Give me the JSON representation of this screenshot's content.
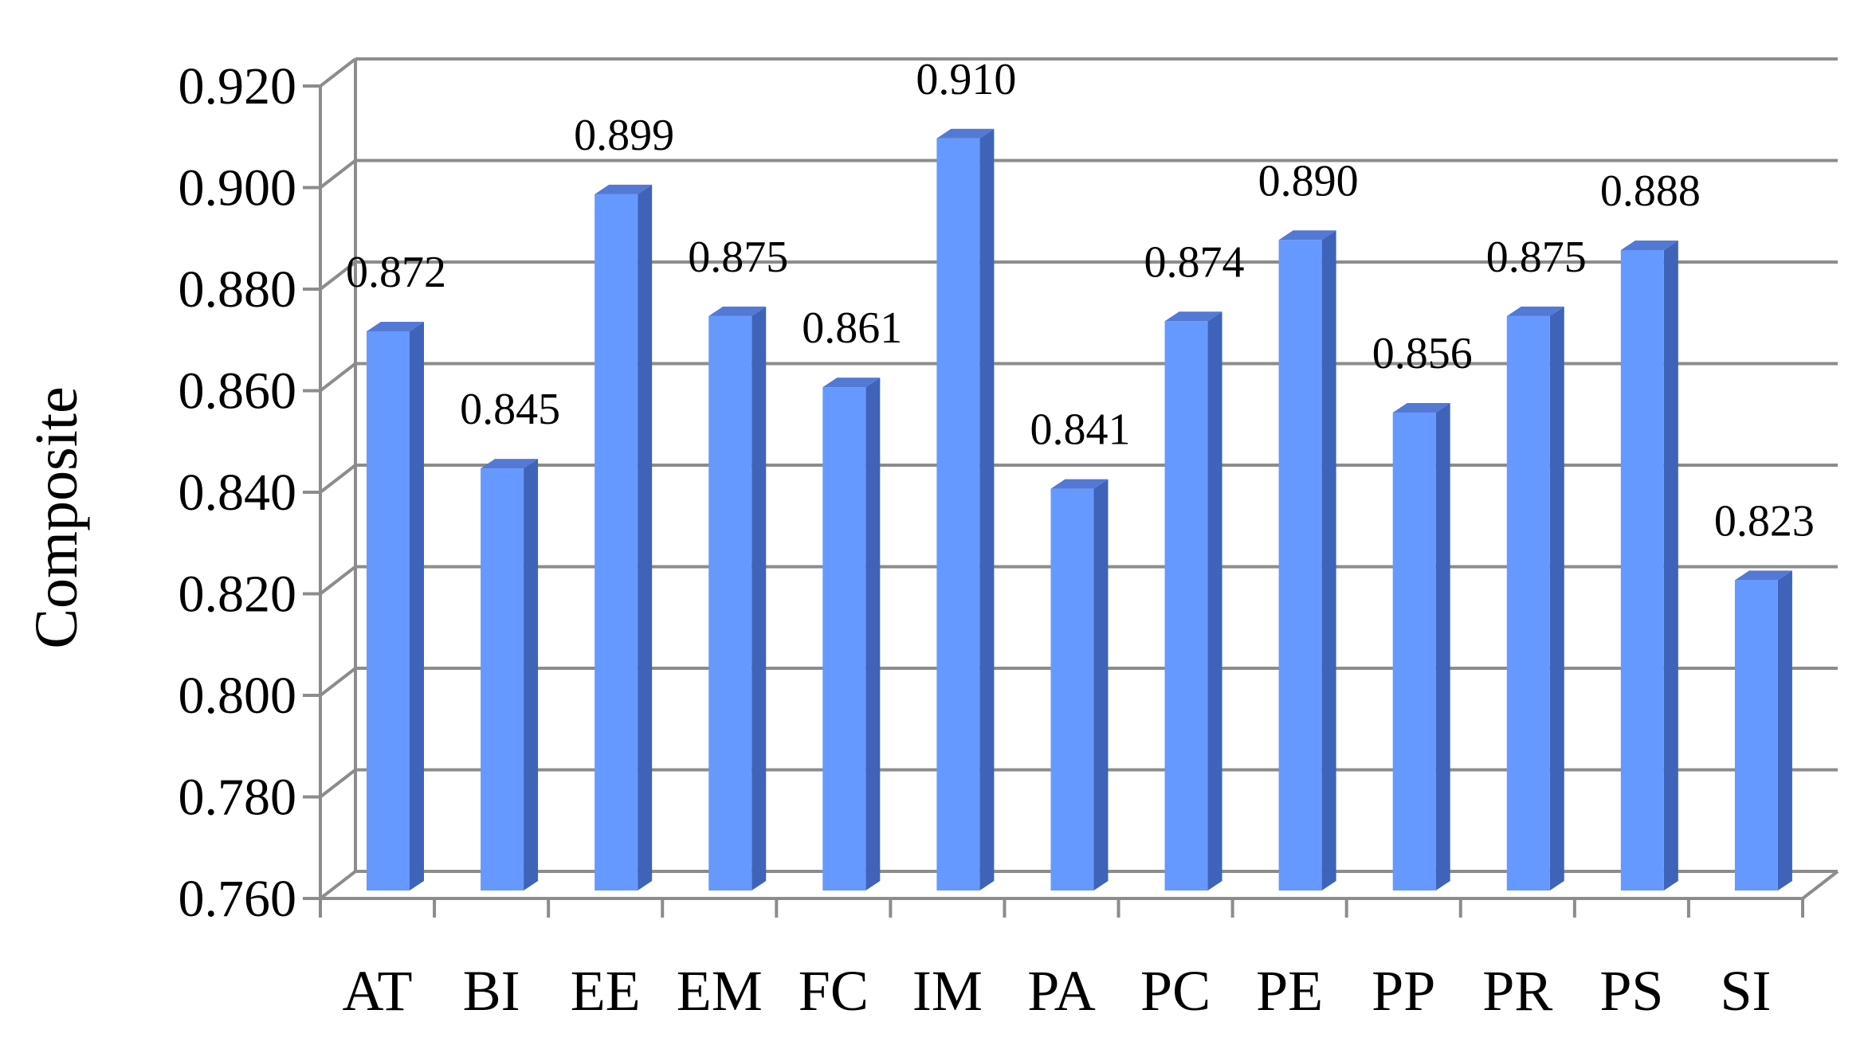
{
  "chart_data": {
    "type": "bar",
    "style": "3d-column",
    "categories": [
      "AT",
      "BI",
      "EE",
      "EM",
      "FC",
      "IM",
      "PA",
      "PC",
      "PE",
      "PP",
      "PR",
      "PS",
      "SI"
    ],
    "values": [
      0.872,
      0.845,
      0.899,
      0.875,
      0.861,
      0.91,
      0.841,
      0.874,
      0.89,
      0.856,
      0.875,
      0.888,
      0.823
    ],
    "value_labels": [
      "0.872",
      "0.845",
      "0.899",
      "0.875",
      "0.861",
      "0.910",
      "0.841",
      "0.874",
      "0.890",
      "0.856",
      "0.875",
      "0.888",
      "0.823"
    ],
    "y_ticks": [
      "0.760",
      "0.780",
      "0.800",
      "0.820",
      "0.840",
      "0.860",
      "0.880",
      "0.900",
      "0.920"
    ],
    "title": "",
    "xlabel": "",
    "ylabel": "Composite",
    "ylim": [
      0.76,
      0.92
    ],
    "grid": true,
    "legend": "none",
    "colors": {
      "bar_front": "#6699FF",
      "bar_side": "#3F63B8",
      "bar_top": "#5479D4",
      "grid": "#8C8C8C",
      "axis": "#8C8C8C"
    }
  }
}
